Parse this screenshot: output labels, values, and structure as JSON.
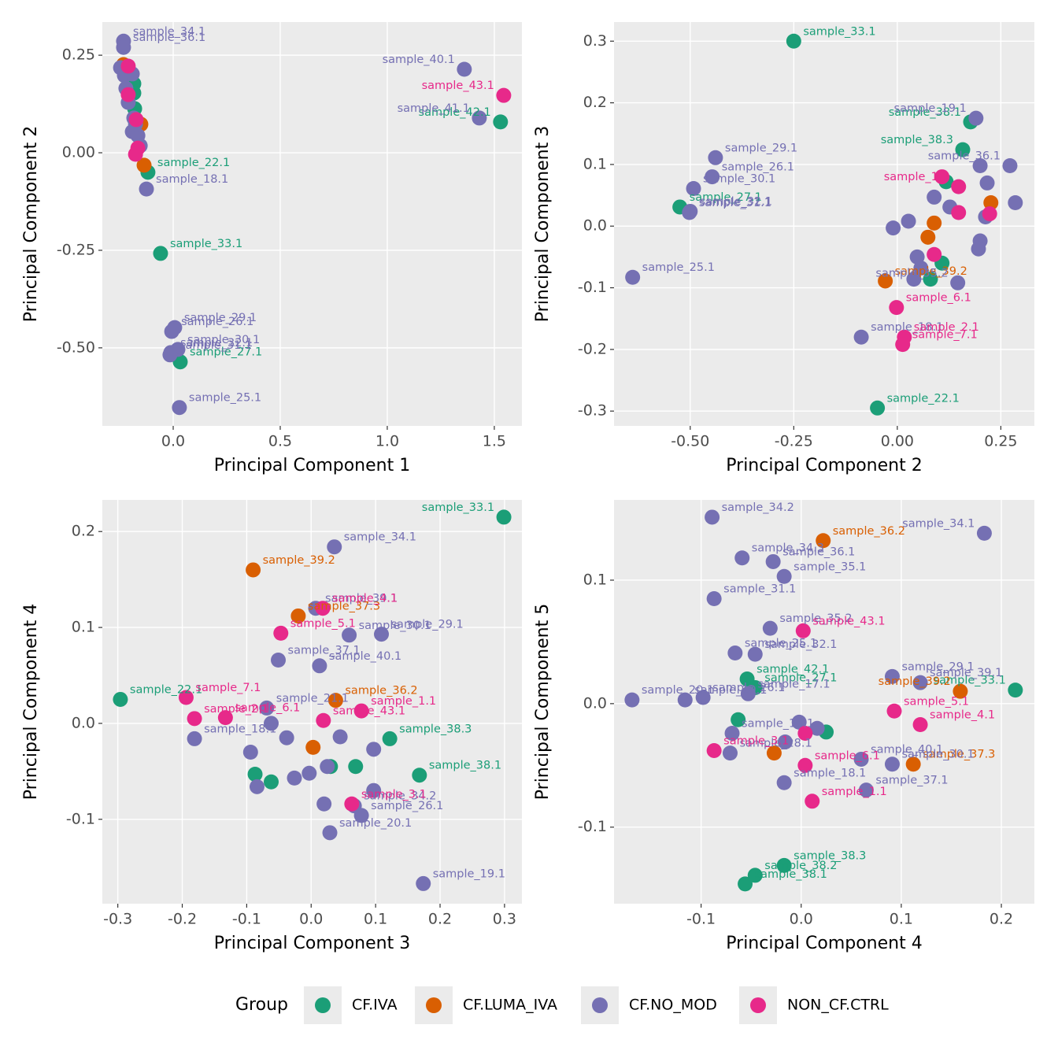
{
  "chart_data": [
    {
      "type": "scatter",
      "xlabel": "Principal Component 1",
      "ylabel": "Principal Component 2",
      "legend_title": "Group",
      "xlim": [
        -0.331,
        1.629
      ],
      "ylim": [
        -0.7,
        0.335
      ],
      "xticks": [
        {
          "value": 0,
          "label": "0.0"
        },
        0.5,
        {
          "value": 1,
          "label": "1.0"
        },
        1.5
      ],
      "yticks": [
        {
          "value": -0.5,
          "label": "-0.50"
        },
        -0.25,
        {
          "value": 0,
          "label": "0.00"
        },
        0.25
      ],
      "series": [
        {
          "name": "CF.IVA",
          "color": "#1b9e77",
          "x": [
            1.529,
            -0.118,
            -0.059,
            0.033,
            -0.184,
            -0.184,
            -0.18
          ],
          "values": [
            0.079,
            -0.05,
            -0.258,
            -0.536,
            0.177,
            0.153,
            0.113
          ],
          "labels": [
            "sample_42.1",
            "sample_22.1",
            "sample_33.1",
            "sample_27.1",
            null,
            null,
            null
          ]
        },
        {
          "name": "CF.LUMA_IVA",
          "color": "#d95f02",
          "x": [
            -0.232,
            -0.151,
            -0.136
          ],
          "values": [
            0.226,
            0.073,
            -0.032
          ],
          "labels": [
            null,
            null,
            null
          ]
        },
        {
          "name": "CF.NO_MOD",
          "color": "#7570b3",
          "x": [
            -0.232,
            -0.232,
            1.36,
            1.43,
            -0.125,
            0.007,
            -0.007,
            0.022,
            -0.011,
            -0.015,
            0.029,
            -0.246,
            -0.228,
            -0.191,
            -0.221,
            -0.21,
            -0.184,
            -0.191,
            -0.165,
            -0.154,
            -0.176
          ],
          "values": [
            0.286,
            0.27,
            0.214,
            0.089,
            -0.093,
            -0.448,
            -0.458,
            -0.504,
            -0.512,
            -0.518,
            -0.653,
            0.218,
            0.198,
            0.202,
            0.165,
            0.129,
            0.089,
            0.054,
            0.044,
            0.018,
            0.073
          ],
          "labels": [
            "sample_34.1",
            "sample_36.1",
            "sample_40.1",
            "sample_41.1",
            "sample_18.1",
            "sample_29.1",
            "sample_26.1",
            "sample_30.1",
            "sample_32.1",
            "sample_31.1",
            "sample_25.1",
            null,
            null,
            null,
            null,
            null,
            null,
            null,
            null,
            null,
            null
          ]
        },
        {
          "name": "NON_CF.CTRL",
          "color": "#e7298a",
          "x": [
            1.544,
            -0.21,
            -0.21,
            -0.173,
            -0.165,
            -0.176
          ],
          "values": [
            0.147,
            0.222,
            0.149,
            0.085,
            0.012,
            -0.004
          ],
          "labels": [
            "sample_43.1",
            null,
            null,
            null,
            null,
            null
          ]
        }
      ]
    },
    {
      "type": "scatter",
      "xlabel": "Principal Component 2",
      "ylabel": "Principal Component 3",
      "xlim": [
        -0.684,
        0.331
      ],
      "ylim": [
        -0.324,
        0.331
      ],
      "xticks": [
        {
          "value": -0.5,
          "label": "-0.50"
        },
        -0.25,
        {
          "value": 0,
          "label": "0.00"
        },
        0.25
      ],
      "yticks": [
        -0.3,
        -0.2,
        -0.1,
        {
          "value": 0,
          "label": "0.0"
        },
        0.1,
        0.2,
        0.3
      ],
      "series": [
        {
          "name": "CF.IVA",
          "color": "#1b9e77",
          "x": [
            -0.25,
            0.177,
            0.158,
            -0.525,
            -0.048,
            0.118,
            0.108,
            0.08
          ],
          "values": [
            0.3,
            0.169,
            0.124,
            0.031,
            -0.295,
            0.072,
            -0.06,
            -0.086
          ],
          "labels": [
            "sample_33.1",
            "sample_38.1",
            "sample_38.3",
            "sample_27.1",
            "sample_22.1",
            null,
            null,
            null
          ]
        },
        {
          "name": "CF.LUMA_IVA",
          "color": "#d95f02",
          "x": [
            -0.029,
            0.226,
            0.089,
            0.074
          ],
          "values": [
            -0.089,
            0.038,
            0.005,
            -0.018
          ],
          "labels": [
            "sample_39.2",
            null,
            null,
            null
          ]
        },
        {
          "name": "CF.NO_MOD",
          "color": "#7570b3",
          "x": [
            0.19,
            0.272,
            -0.439,
            -0.492,
            -0.447,
            -0.5,
            -0.502,
            -0.639,
            -0.087,
            0.146,
            0.2,
            0.217,
            0.089,
            0.127,
            0.213,
            0.285,
            0.2,
            0.196,
            -0.01,
            0.027,
            0.048,
            0.057,
            0.04
          ],
          "values": [
            0.175,
            0.098,
            0.111,
            0.061,
            0.08,
            0.024,
            0.022,
            -0.083,
            -0.18,
            -0.092,
            0.098,
            0.07,
            0.047,
            0.031,
            0.015,
            0.038,
            -0.024,
            -0.037,
            -0.003,
            0.008,
            -0.05,
            -0.068,
            -0.086
          ],
          "labels": [
            "sample_19.1",
            "sample_36.1",
            "sample_29.1",
            "sample_30.1",
            "sample_26.1",
            "sample_32.1",
            "sample_31.1",
            "sample_25.1",
            "sample_18.1",
            "sample_35.2",
            null,
            null,
            null,
            null,
            null,
            null,
            null,
            null,
            null,
            null,
            null,
            null,
            null
          ]
        },
        {
          "name": "NON_CF.CTRL",
          "color": "#e7298a",
          "x": [
            0.108,
            0.148,
            0.148,
            0.223,
            0.089,
            -0.002,
            0.017,
            0.013
          ],
          "values": [
            0.08,
            0.064,
            0.022,
            0.02,
            -0.046,
            -0.132,
            -0.18,
            -0.192
          ],
          "labels": [
            null,
            "sample_1.1",
            null,
            null,
            null,
            "sample_6.1",
            "sample_2.1",
            "sample_7.1"
          ]
        }
      ]
    },
    {
      "type": "scatter",
      "xlabel": "Principal Component 3",
      "ylabel": "Principal Component 4",
      "xlim": [
        -0.324,
        0.327
      ],
      "ylim": [
        -0.188,
        0.233
      ],
      "xticks": [
        -0.3,
        -0.2,
        -0.1,
        {
          "value": 0,
          "label": "0.0"
        },
        0.1,
        0.2,
        0.3
      ],
      "yticks": [
        -0.1,
        {
          "value": 0,
          "label": "0.0"
        },
        0.1,
        0.2
      ],
      "series": [
        {
          "name": "CF.IVA",
          "color": "#1b9e77",
          "x": [
            0.299,
            -0.296,
            0.122,
            0.168,
            0.069,
            0.03,
            -0.087,
            -0.062
          ],
          "values": [
            0.215,
            0.025,
            -0.016,
            -0.054,
            -0.045,
            -0.045,
            -0.053,
            -0.061
          ],
          "labels": [
            "sample_33.1",
            "sample_22.1",
            "sample_38.3",
            "sample_38.1",
            null,
            null,
            null,
            null
          ]
        },
        {
          "name": "CF.LUMA_IVA",
          "color": "#d95f02",
          "x": [
            -0.09,
            -0.02,
            0.038,
            0.003
          ],
          "values": [
            0.16,
            0.112,
            0.024,
            -0.025
          ],
          "labels": [
            "sample_39.2",
            "sample_37.3",
            "sample_36.2",
            null
          ]
        },
        {
          "name": "CF.NO_MOD",
          "color": "#7570b3",
          "x": [
            0.036,
            0.007,
            0.059,
            0.109,
            -0.051,
            0.013,
            -0.069,
            -0.181,
            0.067,
            0.078,
            0.029,
            0.174,
            -0.062,
            -0.038,
            -0.094,
            0.045,
            0.097,
            0.025,
            -0.003,
            -0.026,
            -0.084,
            0.02,
            0.097
          ],
          "values": [
            0.184,
            0.12,
            0.092,
            0.093,
            0.066,
            0.06,
            0.016,
            -0.016,
            -0.086,
            -0.096,
            -0.114,
            -0.167,
            0,
            -0.015,
            -0.03,
            -0.014,
            -0.027,
            -0.045,
            -0.052,
            -0.057,
            -0.066,
            -0.084,
            -0.07
          ],
          "labels": [
            "sample_34.1",
            "sample_39.1",
            "sample_30.1",
            "sample_29.1",
            "sample_37.1",
            "sample_40.1",
            "sample_21.1",
            "sample_18.1",
            "sample_34.2",
            "sample_26.1",
            "sample_20.1",
            "sample_19.1",
            null,
            null,
            null,
            null,
            null,
            null,
            null,
            null,
            null,
            null,
            null
          ]
        },
        {
          "name": "NON_CF.CTRL",
          "color": "#e7298a",
          "x": [
            -0.194,
            -0.181,
            -0.133,
            -0.047,
            0.018,
            0.019,
            0.078,
            0.063
          ],
          "values": [
            0.027,
            0.005,
            0.006,
            0.094,
            0.12,
            0.003,
            0.013,
            -0.084
          ],
          "labels": [
            "sample_7.1",
            "sample_2.1",
            "sample_6.1",
            "sample_5.1",
            "sample_4.1",
            "sample_43.1",
            "sample_1.1",
            "sample_3.1"
          ]
        }
      ]
    },
    {
      "type": "scatter",
      "xlabel": "Principal Component 4",
      "ylabel": "Principal Component 5",
      "xlim": [
        -0.187,
        0.233
      ],
      "ylim": [
        -0.162,
        0.165
      ],
      "xticks": [
        -0.1,
        {
          "value": 0,
          "label": "0.0"
        },
        0.1,
        0.2
      ],
      "yticks": [
        -0.1,
        {
          "value": 0,
          "label": "0.0"
        },
        0.1
      ],
      "series": [
        {
          "name": "CF.IVA",
          "color": "#1b9e77",
          "x": [
            0.214,
            -0.054,
            -0.046,
            -0.017,
            -0.046,
            -0.056,
            -0.063,
            0.025
          ],
          "values": [
            0.011,
            0.02,
            0.013,
            -0.131,
            -0.139,
            -0.146,
            -0.013,
            -0.023
          ],
          "labels": [
            "sample_33.1",
            "sample_42.1",
            "sample_27.1",
            "sample_38.3",
            "sample_38.2",
            "sample_38.1",
            null,
            null
          ]
        },
        {
          "name": "CF.LUMA_IVA",
          "color": "#d95f02",
          "x": [
            0.022,
            0.159,
            0.112,
            -0.027
          ],
          "values": [
            0.132,
            0.01,
            -0.049,
            -0.04
          ],
          "labels": [
            "sample_36.2",
            "sample_39.2",
            "sample_37.3",
            null
          ]
        },
        {
          "name": "CF.NO_MOD",
          "color": "#7570b3",
          "x": [
            -0.089,
            0.183,
            -0.028,
            -0.059,
            -0.017,
            -0.087,
            -0.031,
            -0.066,
            -0.046,
            0.091,
            0.119,
            -0.116,
            -0.098,
            -0.053,
            -0.169,
            -0.069,
            -0.071,
            0.06,
            0.091,
            0.065,
            -0.017,
            -0.002,
            -0.016,
            0.016
          ],
          "values": [
            0.151,
            0.138,
            0.115,
            0.118,
            0.103,
            0.085,
            0.061,
            0.041,
            0.04,
            0.022,
            0.017,
            0.003,
            0.005,
            0.008,
            0.003,
            -0.024,
            -0.04,
            -0.045,
            -0.049,
            -0.07,
            -0.064,
            -0.015,
            -0.031,
            -0.02
          ],
          "labels": [
            "sample_34.2",
            "sample_34.1",
            "sample_36.1",
            "sample_34.3",
            "sample_35.1",
            "sample_31.1",
            "sample_35.2",
            "sample_25.1",
            "sample_32.1",
            "sample_29.1",
            "sample_39.1",
            "sample_19.1",
            "sample_26.1",
            "sample_17.1",
            "sample_20.1",
            "sample_16.1",
            "sample_28.1",
            "sample_40.1",
            "sample_30.1",
            "sample_37.1",
            "sample_18.1",
            null,
            null,
            null
          ]
        },
        {
          "name": "NON_CF.CTRL",
          "color": "#e7298a",
          "x": [
            0.002,
            0.093,
            0.119,
            -0.087,
            0.004,
            0.011,
            0.004
          ],
          "values": [
            0.059,
            -0.006,
            -0.017,
            -0.038,
            -0.05,
            -0.079,
            -0.024
          ],
          "labels": [
            "sample_43.1",
            "sample_5.1",
            "sample_4.1",
            "sample_3.1",
            "sample_6.1",
            "sample_1.1",
            null
          ]
        }
      ]
    }
  ]
}
